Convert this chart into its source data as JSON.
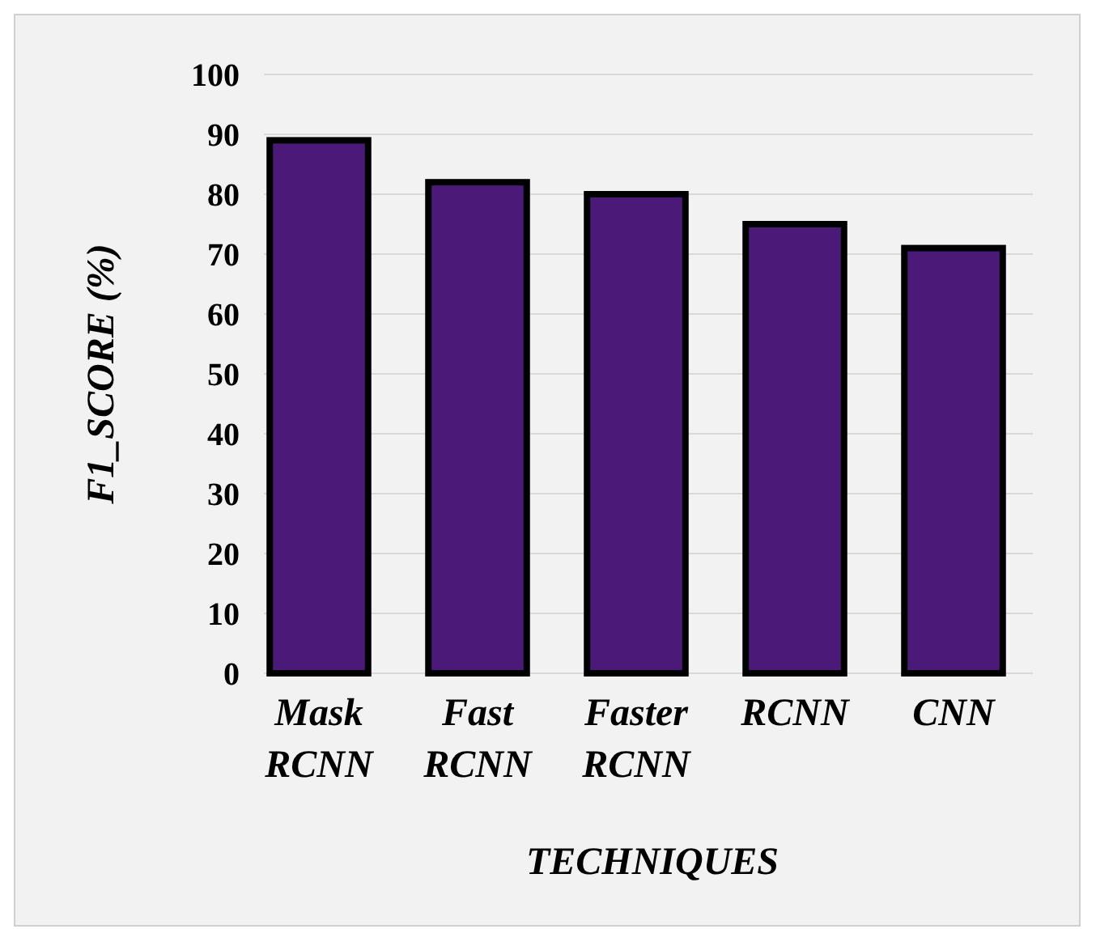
{
  "chart_data": {
    "type": "bar",
    "xlabel": "TECHNIQUES",
    "ylabel": "F1_SCORE (%)",
    "categories": [
      "Mask RCNN",
      "Fast RCNN",
      "Faster RCNN",
      "RCNN",
      "CNN"
    ],
    "values": [
      89,
      82,
      80,
      75,
      71
    ],
    "color": "#4b1a78",
    "ylim": [
      0,
      100
    ],
    "yticks": [
      0,
      10,
      20,
      30,
      40,
      50,
      60,
      70,
      80,
      90,
      100
    ],
    "grid": "y"
  }
}
